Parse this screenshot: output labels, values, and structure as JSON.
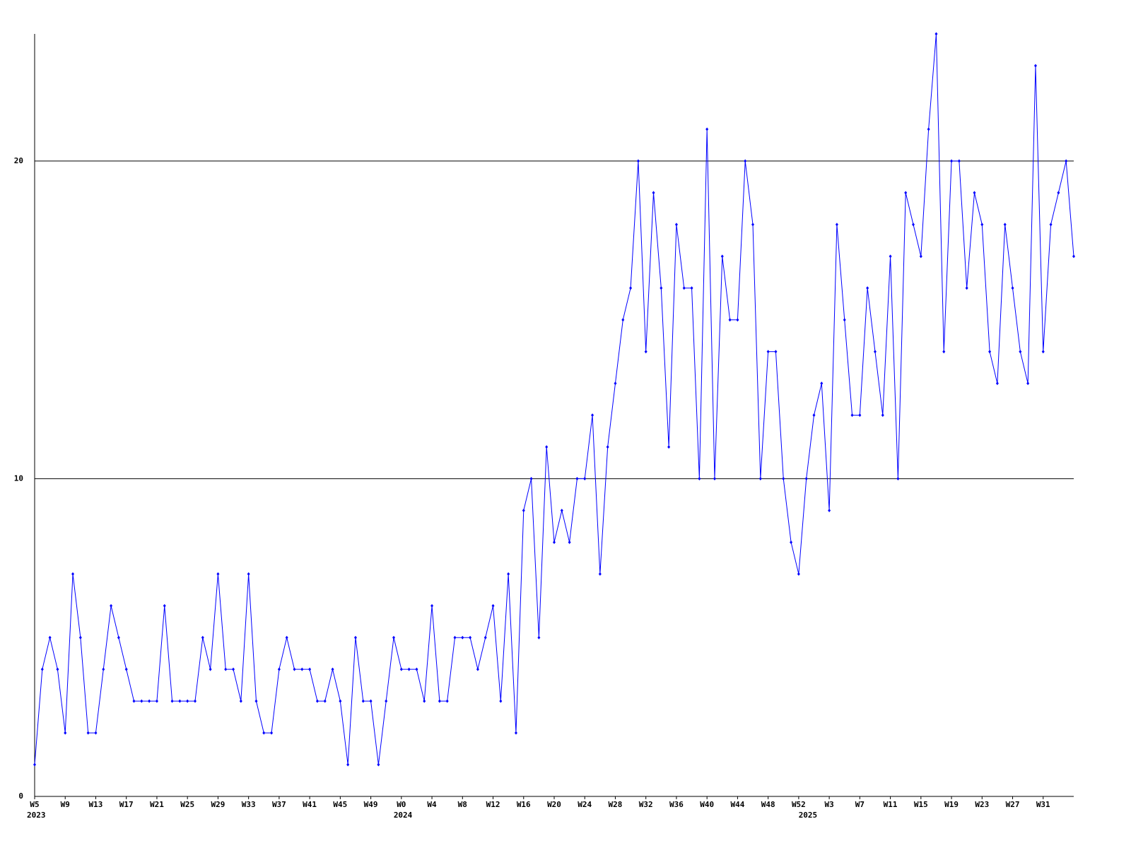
{
  "chart_data": {
    "type": "line",
    "categories": [
      "W5",
      null,
      null,
      null,
      "W9",
      null,
      null,
      null,
      "W13",
      null,
      null,
      null,
      "W17",
      null,
      null,
      null,
      "W21",
      null,
      null,
      null,
      "W25",
      null,
      null,
      null,
      "W29",
      null,
      null,
      null,
      "W33",
      null,
      null,
      null,
      "W37",
      null,
      null,
      null,
      "W41",
      null,
      null,
      null,
      "W45",
      null,
      null,
      null,
      "W49",
      null,
      null,
      null,
      "W0",
      null,
      null,
      null,
      "W4",
      null,
      null,
      null,
      "W8",
      null,
      null,
      null,
      "W12",
      null,
      null,
      null,
      "W16",
      null,
      null,
      null,
      "W20",
      null,
      null,
      null,
      "W24",
      null,
      null,
      null,
      "W28",
      null,
      null,
      null,
      "W32",
      null,
      null,
      null,
      "W36",
      null,
      null,
      null,
      "W40",
      null,
      null,
      null,
      "W44",
      null,
      null,
      null,
      "W48",
      null,
      null,
      null,
      "W52",
      null,
      null,
      null,
      "W3",
      null,
      null,
      null,
      "W7",
      null,
      null,
      null,
      "W11",
      null,
      null,
      null,
      "W15",
      null,
      null,
      null,
      "W19",
      null,
      null,
      null,
      "W23",
      null,
      null,
      null,
      "W27",
      null,
      null,
      null,
      "W31",
      null,
      null,
      null,
      null
    ],
    "year_labels": [
      {
        "index": 0,
        "label": "2023"
      },
      {
        "index": 48,
        "label": "2024"
      },
      {
        "index": 101,
        "label": "2025"
      }
    ],
    "series": [
      {
        "color": "#0000ff",
        "values": [
          1,
          4,
          5,
          4,
          2,
          7,
          5,
          2,
          2,
          4,
          6,
          5,
          4,
          3,
          3,
          3,
          3,
          6,
          3,
          3,
          3,
          3,
          5,
          4,
          7,
          4,
          4,
          3,
          7,
          3,
          2,
          2,
          4,
          5,
          4,
          4,
          4,
          3,
          3,
          4,
          3,
          1,
          5,
          3,
          3,
          1,
          3,
          5,
          4,
          4,
          4,
          3,
          6,
          3,
          3,
          5,
          5,
          5,
          4,
          5,
          6,
          3,
          7,
          2,
          9,
          10,
          5,
          11,
          8,
          9,
          8,
          10,
          10,
          12,
          7,
          11,
          13,
          15,
          16,
          20,
          14,
          19,
          16,
          11,
          18,
          16,
          16,
          10,
          21,
          10,
          17,
          15,
          15,
          20,
          18,
          10,
          14,
          14,
          10,
          8,
          7,
          10,
          12,
          13,
          9,
          18,
          15,
          12,
          12,
          16,
          14,
          12,
          17,
          10,
          19,
          18,
          17,
          21,
          24,
          14,
          20,
          20,
          16,
          19,
          18,
          14,
          13,
          18,
          16,
          14,
          13,
          23,
          14,
          18,
          19,
          20,
          17
        ]
      }
    ],
    "ylim": [
      0,
      24
    ],
    "yticks": [
      0,
      10,
      20
    ],
    "grid": true
  }
}
